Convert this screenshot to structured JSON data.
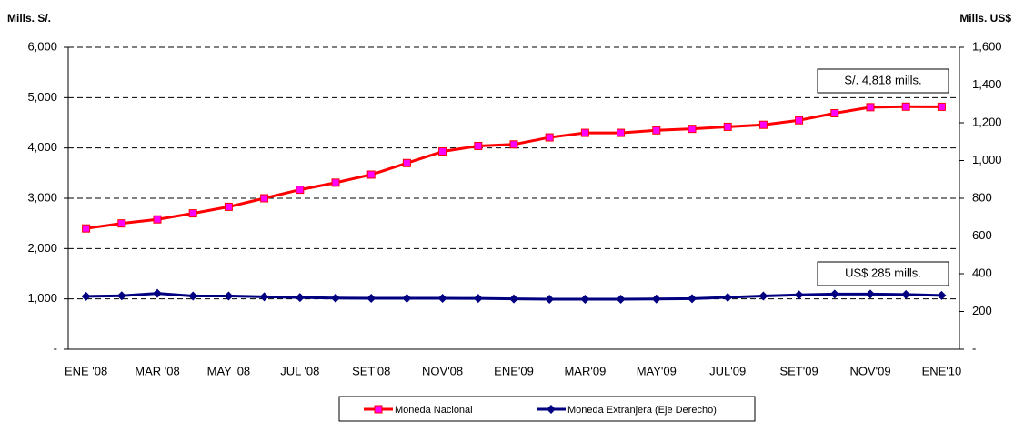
{
  "chart_data": {
    "type": "line",
    "y_label": "Mills. S/.",
    "y2_label": "Mills. US$",
    "categories": [
      "ENE '08",
      null,
      "MAR '08",
      null,
      "MAY '08",
      null,
      "JUL '08",
      null,
      "SET'08",
      null,
      "NOV'08",
      null,
      "ENE'09",
      null,
      "MAR'09",
      null,
      "MAY'09",
      null,
      "JUL'09",
      null,
      "SET'09",
      null,
      "NOV'09",
      null,
      "ENE'10"
    ],
    "series": [
      {
        "name": "Moneda Nacional",
        "color": "#ff0000",
        "marker_color": "#ff00ff",
        "marker": "square",
        "values": [
          2400,
          2500,
          2580,
          2700,
          2830,
          3000,
          3170,
          3310,
          3470,
          3700,
          3930,
          4040,
          4070,
          4210,
          4300,
          4300,
          4350,
          4380,
          4420,
          4460,
          4550,
          4690,
          4810,
          4820,
          4818
        ]
      },
      {
        "name": "Moneda Extranjera (Eje Derecho)",
        "color": "#000080",
        "marker_color": "#000080",
        "marker": "diamond",
        "axis": "y2",
        "values": [
          280,
          283,
          296,
          282,
          282,
          278,
          274,
          271,
          270,
          270,
          270,
          269,
          267,
          265,
          265,
          265,
          266,
          268,
          275,
          282,
          288,
          292,
          292,
          290,
          285
        ]
      }
    ],
    "ylim": [
      0,
      6000
    ],
    "yticks": [
      {
        "value": 0,
        "label": "-"
      },
      {
        "value": 1000,
        "label": "1,000"
      },
      {
        "value": 2000,
        "label": "2,000"
      },
      {
        "value": 3000,
        "label": "3,000"
      },
      {
        "value": 4000,
        "label": "4,000"
      },
      {
        "value": 5000,
        "label": "5,000"
      },
      {
        "value": 6000,
        "label": "6,000"
      }
    ],
    "y2lim": [
      0,
      1600
    ],
    "y2ticks": [
      {
        "value": 0,
        "label": "-"
      },
      200,
      400,
      600,
      800,
      {
        "value": 1000,
        "label": "1,000"
      },
      {
        "value": 1200,
        "label": "1,200"
      },
      {
        "value": 1400,
        "label": "1,400"
      },
      {
        "value": 1600,
        "label": "1,600"
      }
    ],
    "grid": true,
    "annotations": [
      "S/. 4,818 mills.",
      "US$ 285 mills."
    ],
    "legend": "bottom"
  }
}
